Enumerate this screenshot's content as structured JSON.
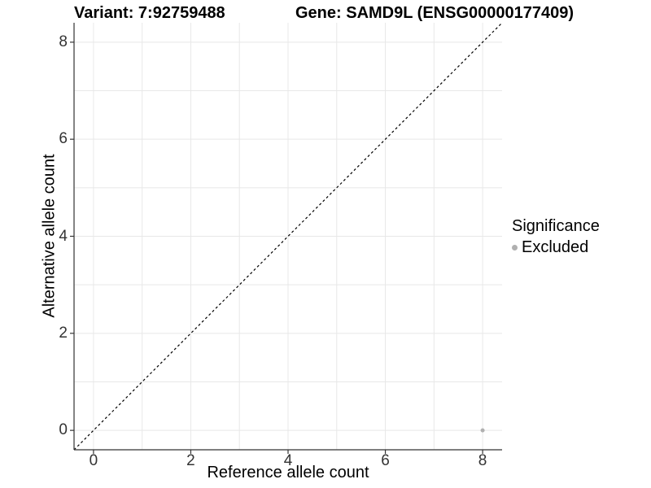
{
  "chart_data": {
    "type": "scatter",
    "title_left": "Variant: 7:92759488",
    "title_right": "Gene: SAMD9L (ENSG00000177409)",
    "xlabel": "Reference allele count",
    "ylabel": "Alternative allele count",
    "xlim": [
      -0.4,
      8.4
    ],
    "ylim": [
      -0.4,
      8.4
    ],
    "x_ticks": [
      0,
      2,
      4,
      6,
      8
    ],
    "y_ticks": [
      0,
      2,
      4,
      6,
      8
    ],
    "grid": true,
    "grid_step": 1,
    "legend_position": "right",
    "legend": {
      "title": "Significance",
      "items": [
        {
          "label": "Excluded",
          "color": "#b0b0b0"
        }
      ]
    },
    "series": [
      {
        "name": "Excluded",
        "color": "#b0b0b0",
        "points": [
          {
            "x": 8,
            "y": 0
          }
        ]
      }
    ],
    "reference_line": {
      "type": "identity",
      "slope": 1,
      "intercept": 0,
      "style": "dashed",
      "color": "#000000"
    },
    "colors": {
      "grid": "#e8e8e8",
      "axis_line": "#333333",
      "tick": "#333333",
      "tick_label": "#333333",
      "point": "#b0b0b0"
    }
  }
}
